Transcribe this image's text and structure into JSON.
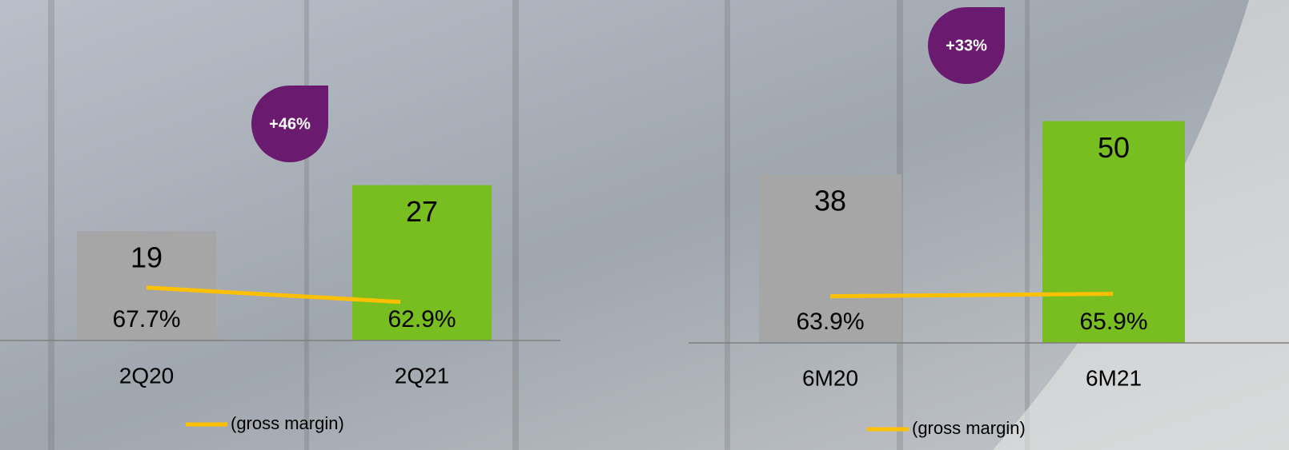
{
  "chart_data": [
    {
      "type": "bar",
      "categories": [
        "2Q20",
        "2Q21"
      ],
      "series": [
        {
          "values": [
            19,
            27
          ],
          "colors": [
            "#a6a6a6",
            "#78be20"
          ]
        },
        {
          "name": "(gross margin)",
          "type": "line",
          "axis": "y2",
          "color": "#ffc000",
          "values": [
            67.7,
            62.9
          ],
          "value_labels": [
            "67.7%",
            "62.9%"
          ]
        }
      ],
      "ylim": [
        0,
        40
      ],
      "y2lim": [
        50,
        127
      ],
      "annotation": "+46%",
      "annotation_color": "#6a1b6f"
    },
    {
      "type": "bar",
      "categories": [
        "6M20",
        "6M21"
      ],
      "series": [
        {
          "values": [
            38,
            50
          ],
          "colors": [
            "#a6a6a6",
            "#78be20"
          ]
        },
        {
          "name": "(gross margin)",
          "type": "line",
          "axis": "y2",
          "color": "#ffc000",
          "values": [
            63.9,
            65.9
          ],
          "value_labels": [
            "63.9%",
            "65.9%"
          ]
        }
      ],
      "ylim": [
        0,
        60
      ],
      "y2lim": [
        25,
        247
      ],
      "annotation": "+33%",
      "annotation_color": "#6a1b6f"
    }
  ]
}
